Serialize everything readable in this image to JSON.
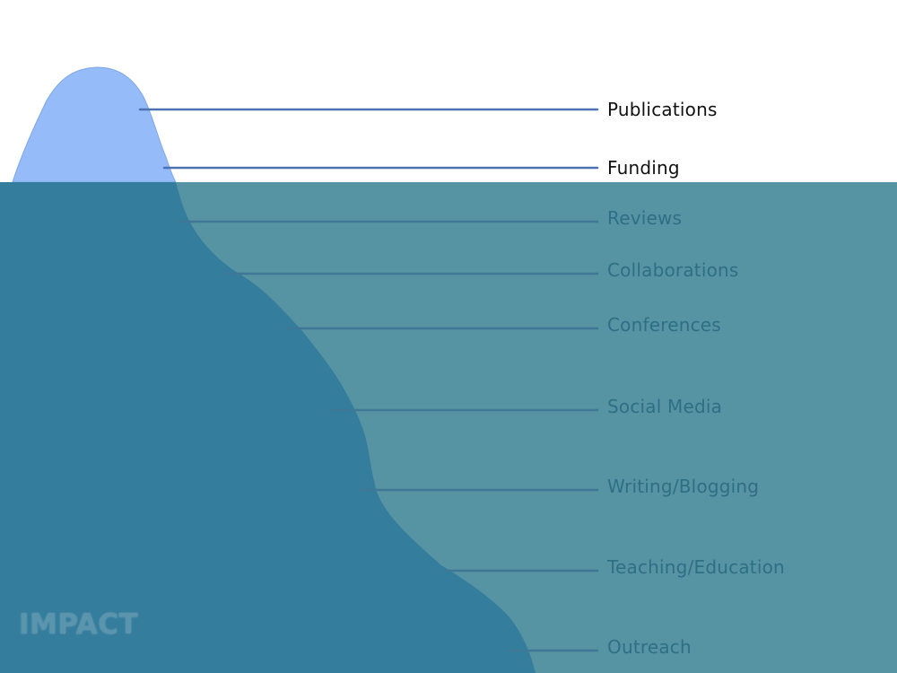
{
  "diagram": {
    "labels_above_water": [
      "Publications",
      "Funding"
    ],
    "labels_below_water": [
      "Reviews",
      "Collaborations",
      "Conferences",
      "Social Media",
      "Writing/Blogging",
      "Teaching/Education",
      "Outreach"
    ],
    "corner_label": "IMPACT"
  },
  "colors": {
    "sky": "#ffffff",
    "water": "#5693a3",
    "iceberg_tip": "#96bbf9",
    "iceberg_submerged": "#357d9d",
    "leader_line_above": "#4b73b4",
    "leader_line_below": "#3e7896",
    "label_above": "#111111",
    "label_below": "#2f6f86",
    "corner_label": "#5b95ad"
  }
}
